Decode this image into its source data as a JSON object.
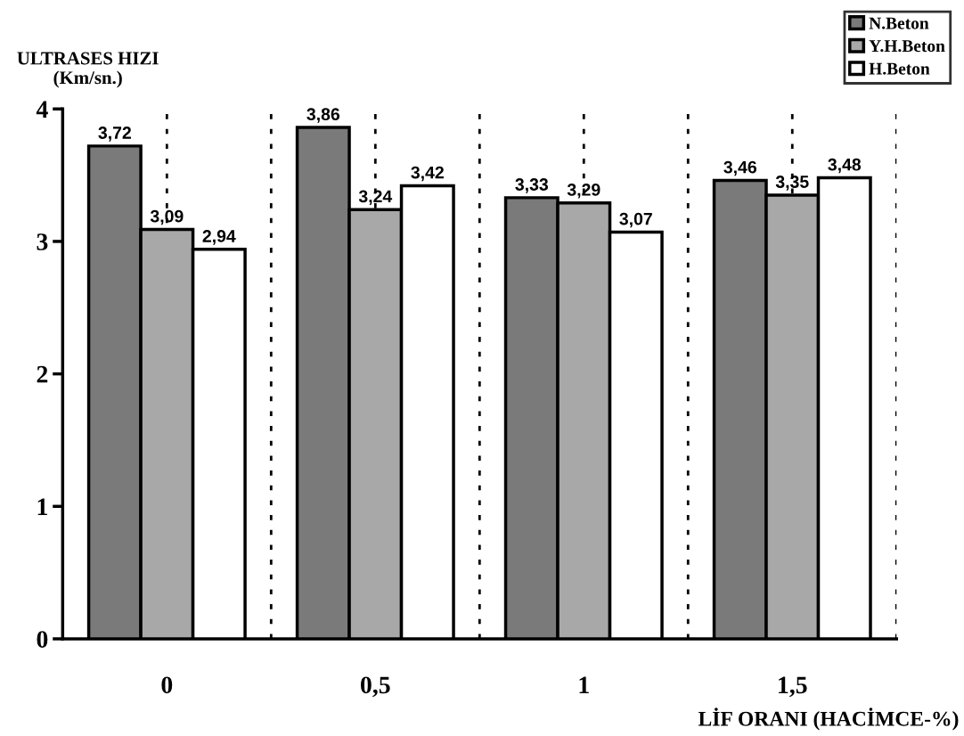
{
  "chart_data": {
    "type": "bar",
    "ylabel": "ULTRASES HIZI\n(Km/sn.)",
    "xlabel": "LİF ORANI (HACİMCE-%)",
    "categories": [
      "0",
      "0,5",
      "1",
      "1,5"
    ],
    "series": [
      {
        "name": "N.Beton",
        "color": "#7a7a7a",
        "values": [
          3.72,
          3.86,
          3.33,
          3.46
        ],
        "value_labels": [
          "3,72",
          "3,86",
          "3,33",
          "3,46"
        ]
      },
      {
        "name": "Y.H.Beton",
        "color": "#a8a8a8",
        "values": [
          3.09,
          3.24,
          3.29,
          3.35
        ],
        "value_labels": [
          "3,09",
          "3,24",
          "3,29",
          "3,35"
        ]
      },
      {
        "name": "H.Beton",
        "color": "#ffffff",
        "values": [
          2.94,
          3.42,
          3.07,
          3.48
        ],
        "value_labels": [
          "2,94",
          "3,42",
          "3,07",
          "3,48"
        ]
      }
    ],
    "ylim": [
      0,
      4
    ],
    "yticks": [
      0,
      1,
      2,
      3,
      4
    ],
    "grid": "x",
    "legend": "top right"
  }
}
